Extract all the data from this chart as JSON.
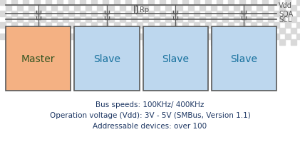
{
  "bg_color": "#ffffff",
  "checkerboard_color": "#d9d9d9",
  "master_color": "#f4b183",
  "slave_color": "#bdd7ee",
  "box_edge_color": "#595959",
  "master_label": "Master",
  "slave_label": "Slave",
  "master_text_color": "#375623",
  "slave_text_color": "#17719e",
  "line_color": "#595959",
  "vdd_label": "Vdd",
  "sda_label": "SDA",
  "scl_label": "SCL",
  "rp_label": "Rp",
  "text_line1": "Bus speeds: 100KHz/ 400KHz",
  "text_line2": "Operation voltage (Vdd): 3V - 5V (SMBus, Version 1.1)",
  "text_line3": "Addressable devices: over 100",
  "text_color": "#1f3864",
  "label_color": "#595959",
  "font_size_boxes": 10,
  "font_size_text": 7.5,
  "font_size_labels": 7
}
